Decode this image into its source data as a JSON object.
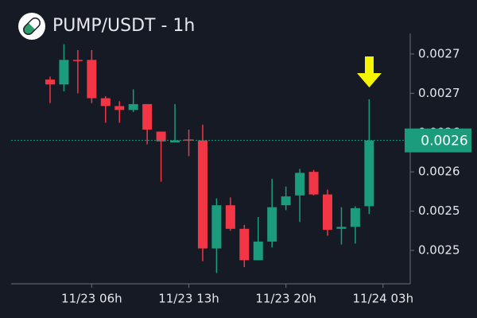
{
  "chart_data": {
    "type": "candlestick",
    "title": "PUMP/USDT - 1h",
    "categories": [
      null,
      null,
      null,
      "11/23 06h",
      null,
      null,
      null,
      null,
      null,
      null,
      "11/23 13h",
      null,
      null,
      null,
      null,
      null,
      null,
      "11/23 20h",
      null,
      null,
      null,
      null,
      null,
      null,
      "11/24 03h"
    ],
    "open": [
      0.002674,
      0.002669,
      0.002694,
      0.002694,
      0.002655,
      0.002647,
      0.002643,
      0.002649,
      0.002621,
      0.00261,
      0.002613,
      0.002612,
      0.002502,
      0.002546,
      0.002522,
      0.00249,
      0.002509,
      0.002546,
      0.002556,
      0.00258,
      0.002557,
      0.002522,
      0.002524,
      0.002545,
      null
    ],
    "high": [
      0.002677,
      0.00271,
      0.002704,
      0.002704,
      0.002657,
      0.002652,
      0.002664,
      0.002649,
      0.002621,
      0.002649,
      0.002623,
      0.002628,
      0.002553,
      0.002554,
      0.002526,
      0.002534,
      0.002573,
      0.002565,
      0.002583,
      0.002582,
      0.002562,
      0.002544,
      0.002545,
      0.002654,
      null
    ],
    "low": [
      0.00265,
      0.002662,
      0.00266,
      0.00265,
      0.00263,
      0.00263,
      0.002641,
      0.002608,
      0.00257,
      0.00261,
      0.002596,
      0.002489,
      0.002477,
      0.00252,
      0.002483,
      0.00249,
      0.002503,
      0.002541,
      0.002529,
      0.002556,
      0.002515,
      0.002506,
      0.002507,
      0.002537,
      null
    ],
    "close": [
      0.002669,
      0.002694,
      0.002693,
      0.002655,
      0.002647,
      0.002643,
      0.002649,
      0.002623,
      0.002611,
      0.002612,
      0.002612,
      0.002502,
      0.002546,
      0.002522,
      0.00249,
      0.002509,
      0.002544,
      0.002555,
      0.002579,
      0.002557,
      0.002521,
      0.002524,
      0.002543,
      0.002612,
      null
    ],
    "up_color": "#1a9c7d",
    "down_color": "#f23645",
    "ylim": [
      0.002466,
      0.002721
    ],
    "yticks": [
      {
        "value": 0.0027,
        "label": "0.0027"
      },
      {
        "value": 0.00266,
        "label": "0.0027"
      },
      {
        "value": 0.00262,
        "label": "0.0026"
      },
      {
        "value": 0.00258,
        "label": "0.0026"
      },
      {
        "value": 0.00254,
        "label": "0.0025"
      },
      {
        "value": 0.0025,
        "label": "0.0025"
      }
    ],
    "price_line": {
      "value": 0.002612,
      "label": "0.0026"
    }
  }
}
